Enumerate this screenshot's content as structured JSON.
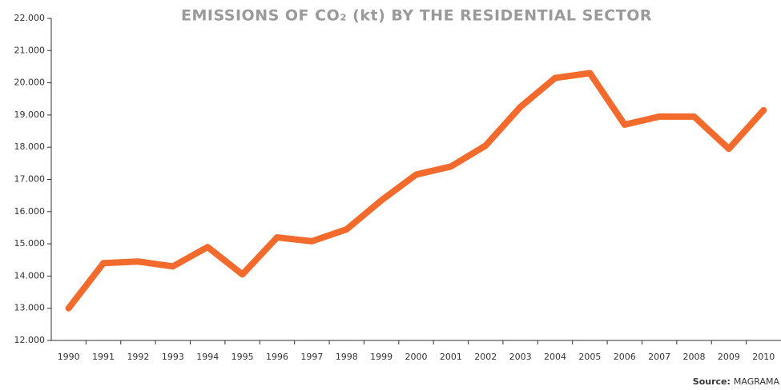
{
  "chart_data": {
    "type": "line",
    "title": "EMISSIONS OF CO₂ (kt) BY THE RESIDENTIAL SECTOR",
    "categories": [
      "1990",
      "1991",
      "1992",
      "1993",
      "1994",
      "1995",
      "1996",
      "1997",
      "1998",
      "1999",
      "2000",
      "2001",
      "2002",
      "2003",
      "2004",
      "2005",
      "2006",
      "2007",
      "2008",
      "2009",
      "2010"
    ],
    "series": [
      {
        "name": "Emissions",
        "color": "#f26b2c",
        "values": [
          13000,
          14400,
          14450,
          14300,
          14900,
          14050,
          15200,
          15080,
          15450,
          16350,
          17150,
          17400,
          18050,
          19250,
          20150,
          20300,
          18700,
          18950,
          18950,
          17950,
          19150
        ]
      }
    ],
    "ylim": [
      12000,
      22000
    ],
    "yticks": [
      {
        "value": 12000,
        "label": "12.000"
      },
      {
        "value": 13000,
        "label": "13.000"
      },
      {
        "value": 14000,
        "label": "14.000"
      },
      {
        "value": 15000,
        "label": "15.000"
      },
      {
        "value": 16000,
        "label": "16.000"
      },
      {
        "value": 17000,
        "label": "17.000"
      },
      {
        "value": 18000,
        "label": "18.000"
      },
      {
        "value": 19000,
        "label": "19.000"
      },
      {
        "value": 20000,
        "label": "20.000"
      },
      {
        "value": 21000,
        "label": "21.000"
      },
      {
        "value": 22000,
        "label": "22.000"
      }
    ],
    "grid": false,
    "source_label": "Source:",
    "source": "MAGRAMA"
  }
}
